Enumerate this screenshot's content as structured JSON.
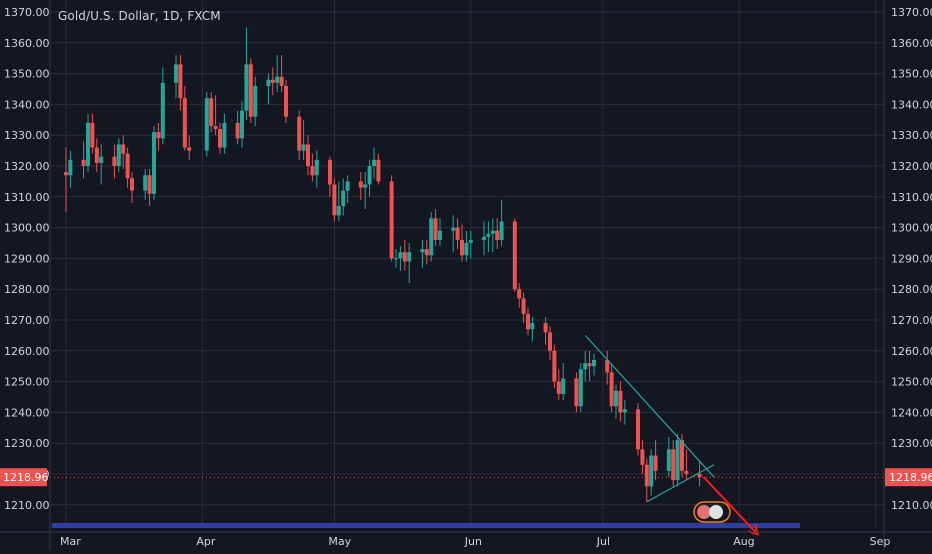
{
  "symbol_title": "Gold/U.S. Dollar, 1D, FXCM",
  "colors": {
    "background": "#131722",
    "grid": "#2a2e39",
    "axis_text": "#d1d4dc",
    "up": "#26a69a",
    "down": "#ef5350",
    "price_label_bg": "#ef5350",
    "wedge": "#26a69a",
    "arrow": "#ff1a1a",
    "bottom_band": "#2f3fa0"
  },
  "chart_data": {
    "type": "candlestick",
    "title": "Gold/U.S. Dollar, 1D, FXCM",
    "x_tick_labels": [
      "Mar",
      "Apr",
      "May",
      "Jun",
      "Jul",
      "Aug",
      "Sep"
    ],
    "y_tick_labels": [
      "1370.00",
      "1360.00",
      "1350.00",
      "1340.00",
      "1330.00",
      "1320.00",
      "1310.00",
      "1300.00",
      "1290.00",
      "1280.00",
      "1270.00",
      "1260.00",
      "1250.00",
      "1240.00",
      "1230.00",
      "1220.00",
      "1210.00"
    ],
    "ylim": [
      1202,
      1373
    ],
    "last_price": "1218.96",
    "last_price_value": 1218.96,
    "grid": true,
    "candles": [
      {
        "date": "2018-03-01",
        "o": 1318,
        "h": 1326,
        "l": 1305,
        "c": 1317
      },
      {
        "date": "2018-03-02",
        "o": 1317,
        "h": 1325,
        "l": 1313,
        "c": 1322
      },
      {
        "date": "2018-03-05",
        "o": 1322,
        "h": 1328,
        "l": 1316,
        "c": 1320
      },
      {
        "date": "2018-03-06",
        "o": 1320,
        "h": 1337,
        "l": 1318,
        "c": 1334
      },
      {
        "date": "2018-03-07",
        "o": 1334,
        "h": 1337,
        "l": 1324,
        "c": 1326
      },
      {
        "date": "2018-03-08",
        "o": 1326,
        "h": 1329,
        "l": 1318,
        "c": 1321
      },
      {
        "date": "2018-03-09",
        "o": 1321,
        "h": 1327,
        "l": 1314,
        "c": 1323
      },
      {
        "date": "2018-03-12",
        "o": 1323,
        "h": 1327,
        "l": 1316,
        "c": 1320
      },
      {
        "date": "2018-03-13",
        "o": 1320,
        "h": 1329,
        "l": 1318,
        "c": 1327
      },
      {
        "date": "2018-03-14",
        "o": 1327,
        "h": 1330,
        "l": 1319,
        "c": 1324
      },
      {
        "date": "2018-03-15",
        "o": 1324,
        "h": 1326,
        "l": 1313,
        "c": 1316
      },
      {
        "date": "2018-03-16",
        "o": 1316,
        "h": 1318,
        "l": 1308,
        "c": 1312
      },
      {
        "date": "2018-03-19",
        "o": 1312,
        "h": 1319,
        "l": 1309,
        "c": 1317
      },
      {
        "date": "2018-03-20",
        "o": 1317,
        "h": 1319,
        "l": 1307,
        "c": 1311
      },
      {
        "date": "2018-03-21",
        "o": 1311,
        "h": 1333,
        "l": 1309,
        "c": 1331
      },
      {
        "date": "2018-03-22",
        "o": 1331,
        "h": 1334,
        "l": 1325,
        "c": 1329
      },
      {
        "date": "2018-03-23",
        "o": 1329,
        "h": 1352,
        "l": 1327,
        "c": 1347
      },
      {
        "date": "2018-03-26",
        "o": 1347,
        "h": 1356,
        "l": 1342,
        "c": 1353
      },
      {
        "date": "2018-03-27",
        "o": 1353,
        "h": 1356,
        "l": 1338,
        "c": 1342
      },
      {
        "date": "2018-03-28",
        "o": 1342,
        "h": 1346,
        "l": 1325,
        "c": 1326
      },
      {
        "date": "2018-03-29",
        "o": 1326,
        "h": 1330,
        "l": 1322,
        "c": 1325
      },
      {
        "date": "2018-04-02",
        "o": 1325,
        "h": 1344,
        "l": 1323,
        "c": 1342
      },
      {
        "date": "2018-04-03",
        "o": 1342,
        "h": 1344,
        "l": 1331,
        "c": 1333
      },
      {
        "date": "2018-04-04",
        "o": 1333,
        "h": 1343,
        "l": 1330,
        "c": 1332
      },
      {
        "date": "2018-04-05",
        "o": 1332,
        "h": 1334,
        "l": 1324,
        "c": 1326
      },
      {
        "date": "2018-04-06",
        "o": 1326,
        "h": 1337,
        "l": 1324,
        "c": 1334
      },
      {
        "date": "2018-04-09",
        "o": 1334,
        "h": 1338,
        "l": 1327,
        "c": 1329
      },
      {
        "date": "2018-04-10",
        "o": 1329,
        "h": 1341,
        "l": 1326,
        "c": 1338
      },
      {
        "date": "2018-04-11",
        "o": 1338,
        "h": 1365,
        "l": 1335,
        "c": 1353
      },
      {
        "date": "2018-04-12",
        "o": 1353,
        "h": 1355,
        "l": 1334,
        "c": 1336
      },
      {
        "date": "2018-04-13",
        "o": 1336,
        "h": 1349,
        "l": 1333,
        "c": 1346
      },
      {
        "date": "2018-04-16",
        "o": 1346,
        "h": 1350,
        "l": 1340,
        "c": 1348
      },
      {
        "date": "2018-04-17",
        "o": 1348,
        "h": 1352,
        "l": 1343,
        "c": 1347
      },
      {
        "date": "2018-04-18",
        "o": 1347,
        "h": 1356,
        "l": 1344,
        "c": 1349
      },
      {
        "date": "2018-04-19",
        "o": 1349,
        "h": 1356,
        "l": 1344,
        "c": 1346
      },
      {
        "date": "2018-04-20",
        "o": 1346,
        "h": 1348,
        "l": 1334,
        "c": 1336
      },
      {
        "date": "2018-04-23",
        "o": 1336,
        "h": 1338,
        "l": 1322,
        "c": 1325
      },
      {
        "date": "2018-04-24",
        "o": 1325,
        "h": 1335,
        "l": 1322,
        "c": 1327
      },
      {
        "date": "2018-04-25",
        "o": 1327,
        "h": 1330,
        "l": 1317,
        "c": 1320
      },
      {
        "date": "2018-04-26",
        "o": 1320,
        "h": 1324,
        "l": 1315,
        "c": 1317
      },
      {
        "date": "2018-04-27",
        "o": 1317,
        "h": 1325,
        "l": 1313,
        "c": 1322
      },
      {
        "date": "2018-04-30",
        "o": 1322,
        "h": 1323,
        "l": 1310,
        "c": 1314
      },
      {
        "date": "2018-05-01",
        "o": 1314,
        "h": 1316,
        "l": 1302,
        "c": 1304
      },
      {
        "date": "2018-05-02",
        "o": 1304,
        "h": 1315,
        "l": 1302,
        "c": 1307
      },
      {
        "date": "2018-05-03",
        "o": 1307,
        "h": 1316,
        "l": 1304,
        "c": 1312
      },
      {
        "date": "2018-05-04",
        "o": 1312,
        "h": 1317,
        "l": 1308,
        "c": 1315
      },
      {
        "date": "2018-05-07",
        "o": 1315,
        "h": 1318,
        "l": 1309,
        "c": 1313
      },
      {
        "date": "2018-05-08",
        "o": 1313,
        "h": 1318,
        "l": 1306,
        "c": 1314
      },
      {
        "date": "2018-05-09",
        "o": 1314,
        "h": 1322,
        "l": 1310,
        "c": 1320
      },
      {
        "date": "2018-05-10",
        "o": 1320,
        "h": 1326,
        "l": 1316,
        "c": 1322
      },
      {
        "date": "2018-05-11",
        "o": 1322,
        "h": 1324,
        "l": 1314,
        "c": 1315
      },
      {
        "date": "2018-05-14",
        "o": 1315,
        "h": 1317,
        "l": 1289,
        "c": 1290
      },
      {
        "date": "2018-05-15",
        "o": 1290,
        "h": 1293,
        "l": 1287,
        "c": 1290
      },
      {
        "date": "2018-05-16",
        "o": 1290,
        "h": 1294,
        "l": 1286,
        "c": 1292
      },
      {
        "date": "2018-05-17",
        "o": 1292,
        "h": 1296,
        "l": 1286,
        "c": 1289
      },
      {
        "date": "2018-05-18",
        "o": 1289,
        "h": 1295,
        "l": 1282,
        "c": 1292
      },
      {
        "date": "2018-05-21",
        "o": 1292,
        "h": 1296,
        "l": 1287,
        "c": 1293
      },
      {
        "date": "2018-05-22",
        "o": 1293,
        "h": 1296,
        "l": 1288,
        "c": 1291
      },
      {
        "date": "2018-05-23",
        "o": 1291,
        "h": 1305,
        "l": 1289,
        "c": 1303
      },
      {
        "date": "2018-05-24",
        "o": 1303,
        "h": 1306,
        "l": 1294,
        "c": 1296
      },
      {
        "date": "2018-05-25",
        "o": 1296,
        "h": 1303,
        "l": 1294,
        "c": 1299
      },
      {
        "date": "2018-05-28",
        "o": 1299,
        "h": 1304,
        "l": 1292,
        "c": 1300
      },
      {
        "date": "2018-05-29",
        "o": 1300,
        "h": 1303,
        "l": 1293,
        "c": 1296
      },
      {
        "date": "2018-05-30",
        "o": 1296,
        "h": 1301,
        "l": 1289,
        "c": 1291
      },
      {
        "date": "2018-05-31",
        "o": 1291,
        "h": 1299,
        "l": 1289,
        "c": 1295
      },
      {
        "date": "2018-06-01",
        "o": 1295,
        "h": 1299,
        "l": 1290,
        "c": 1296
      },
      {
        "date": "2018-06-04",
        "o": 1296,
        "h": 1302,
        "l": 1291,
        "c": 1297
      },
      {
        "date": "2018-06-05",
        "o": 1297,
        "h": 1302,
        "l": 1292,
        "c": 1298
      },
      {
        "date": "2018-06-06",
        "o": 1298,
        "h": 1303,
        "l": 1292,
        "c": 1299
      },
      {
        "date": "2018-06-07",
        "o": 1299,
        "h": 1303,
        "l": 1293,
        "c": 1296
      },
      {
        "date": "2018-06-08",
        "o": 1296,
        "h": 1309,
        "l": 1294,
        "c": 1302
      },
      {
        "date": "2018-06-11",
        "o": 1302,
        "h": 1303,
        "l": 1279,
        "c": 1280
      },
      {
        "date": "2018-06-12",
        "o": 1280,
        "h": 1282,
        "l": 1274,
        "c": 1277
      },
      {
        "date": "2018-06-13",
        "o": 1277,
        "h": 1279,
        "l": 1269,
        "c": 1272
      },
      {
        "date": "2018-06-14",
        "o": 1272,
        "h": 1274,
        "l": 1265,
        "c": 1267
      },
      {
        "date": "2018-06-15",
        "o": 1267,
        "h": 1271,
        "l": 1263,
        "c": 1269
      },
      {
        "date": "2018-06-18",
        "o": 1269,
        "h": 1271,
        "l": 1262,
        "c": 1266
      },
      {
        "date": "2018-06-19",
        "o": 1266,
        "h": 1268,
        "l": 1257,
        "c": 1260
      },
      {
        "date": "2018-06-20",
        "o": 1260,
        "h": 1262,
        "l": 1248,
        "c": 1250
      },
      {
        "date": "2018-06-21",
        "o": 1250,
        "h": 1254,
        "l": 1244,
        "c": 1246
      },
      {
        "date": "2018-06-22",
        "o": 1246,
        "h": 1256,
        "l": 1244,
        "c": 1251
      },
      {
        "date": "2018-06-25",
        "o": 1251,
        "h": 1253,
        "l": 1240,
        "c": 1242
      },
      {
        "date": "2018-06-26",
        "o": 1242,
        "h": 1256,
        "l": 1240,
        "c": 1254
      },
      {
        "date": "2018-06-27",
        "o": 1254,
        "h": 1260,
        "l": 1250,
        "c": 1256
      },
      {
        "date": "2018-06-28",
        "o": 1256,
        "h": 1260,
        "l": 1250,
        "c": 1255
      },
      {
        "date": "2018-06-29",
        "o": 1255,
        "h": 1259,
        "l": 1252,
        "c": 1257
      },
      {
        "date": "2018-07-02",
        "o": 1257,
        "h": 1260,
        "l": 1249,
        "c": 1253
      },
      {
        "date": "2018-07-03",
        "o": 1253,
        "h": 1256,
        "l": 1240,
        "c": 1242
      },
      {
        "date": "2018-07-04",
        "o": 1242,
        "h": 1249,
        "l": 1238,
        "c": 1247
      },
      {
        "date": "2018-07-05",
        "o": 1247,
        "h": 1250,
        "l": 1237,
        "c": 1240
      },
      {
        "date": "2018-07-06",
        "o": 1240,
        "h": 1244,
        "l": 1236,
        "c": 1241
      },
      {
        "date": "2018-07-09",
        "o": 1241,
        "h": 1243,
        "l": 1226,
        "c": 1228
      },
      {
        "date": "2018-07-10",
        "o": 1228,
        "h": 1231,
        "l": 1220,
        "c": 1223
      },
      {
        "date": "2018-07-11",
        "o": 1223,
        "h": 1225,
        "l": 1211,
        "c": 1216
      },
      {
        "date": "2018-07-12",
        "o": 1216,
        "h": 1228,
        "l": 1213,
        "c": 1226
      },
      {
        "date": "2018-07-13",
        "o": 1226,
        "h": 1231,
        "l": 1218,
        "c": 1221
      },
      {
        "date": "2018-07-16",
        "o": 1221,
        "h": 1232,
        "l": 1219,
        "c": 1228
      },
      {
        "date": "2018-07-17",
        "o": 1228,
        "h": 1231,
        "l": 1216,
        "c": 1218
      },
      {
        "date": "2018-07-18",
        "o": 1218,
        "h": 1233,
        "l": 1216,
        "c": 1231
      },
      {
        "date": "2018-07-19",
        "o": 1231,
        "h": 1233,
        "l": 1219,
        "c": 1221
      },
      {
        "date": "2018-07-20",
        "o": 1221,
        "h": 1228,
        "l": 1218,
        "c": 1220
      },
      {
        "date": "2018-07-23",
        "o": 1220,
        "h": 1224,
        "l": 1216,
        "c": 1219
      }
    ],
    "annotations": {
      "wedge_upper": [
        {
          "date": "2018-06-27",
          "price": 1265
        },
        {
          "date": "2018-07-24",
          "price": 1219
        }
      ],
      "wedge_lower": [
        {
          "date": "2018-07-11",
          "price": 1211
        },
        {
          "date": "2018-07-24",
          "price": 1223
        }
      ],
      "arrow": [
        {
          "date": "2018-07-23",
          "price": 1219
        },
        {
          "date": "2018-08-02",
          "price": 1203
        }
      ]
    }
  }
}
